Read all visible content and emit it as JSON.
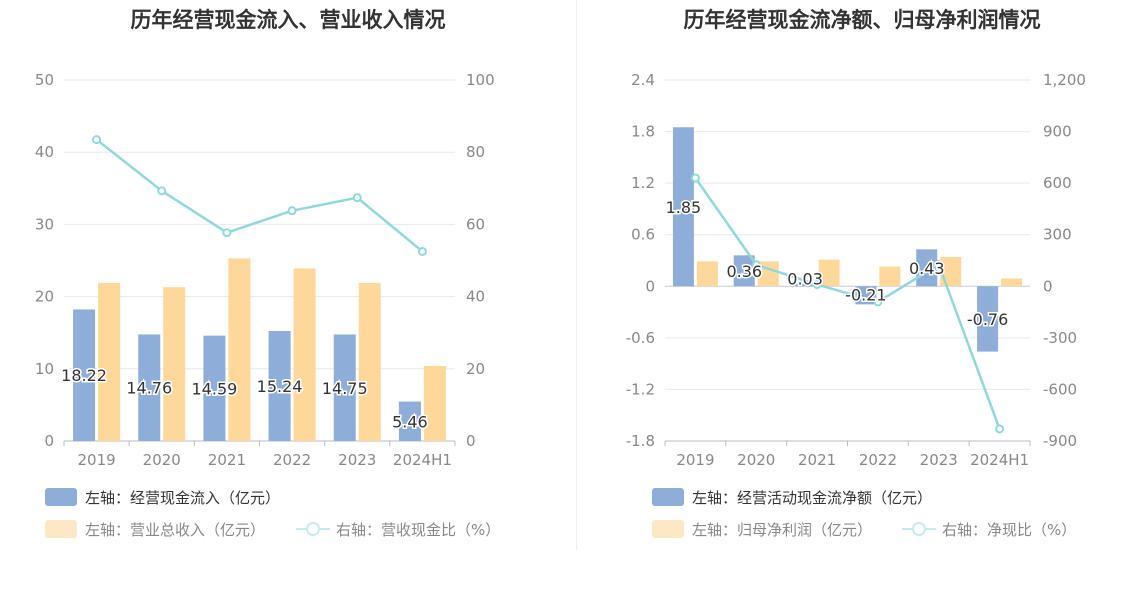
{
  "colors": {
    "bar1": "#8eadd8",
    "bar2": "#fdd89a",
    "line": "#8fd8dc",
    "axis_text": "#888888",
    "grid": "#e6e9f0",
    "title": "#333333",
    "label": "#333333"
  },
  "left": {
    "title": "历年经营现金流入、营业收入情况",
    "legend": {
      "bar1": "左轴：经营现金流入（亿元）",
      "bar2": "左轴：营业总收入（亿元）",
      "line": "右轴：营收现金比（%）"
    }
  },
  "right": {
    "title": "历年经营现金流净额、归母净利润情况",
    "legend": {
      "bar1": "左轴：经营活动现金流净额（亿元）",
      "bar2": "左轴：归母净利润（亿元）",
      "line": "右轴：净现比（%）"
    }
  },
  "chart_data": [
    {
      "type": "bar",
      "title": "历年经营现金流入、营业收入情况",
      "categories": [
        "2019",
        "2020",
        "2021",
        "2022",
        "2023",
        "2024H1"
      ],
      "y_left": {
        "min": 0,
        "max": 50,
        "ticks": [
          "0",
          "10",
          "20",
          "30",
          "40",
          "50"
        ]
      },
      "y_right": {
        "min": 0,
        "max": 100,
        "ticks": [
          "0",
          "20",
          "40",
          "60",
          "80",
          "100"
        ]
      },
      "series": [
        {
          "name": "左轴：经营现金流入（亿元）",
          "axis": "left",
          "kind": "bar",
          "values": [
            18.22,
            14.76,
            14.59,
            15.24,
            14.75,
            5.46
          ],
          "labels": [
            "18.22",
            "14.76",
            "14.59",
            "15.24",
            "14.75",
            "5.46"
          ]
        },
        {
          "name": "左轴：营业总收入（亿元）",
          "axis": "left",
          "kind": "bar",
          "values": [
            21.9,
            21.3,
            25.3,
            23.9,
            21.9,
            10.4
          ]
        },
        {
          "name": "右轴：营收现金比（%）",
          "axis": "right",
          "kind": "line",
          "values": [
            83.5,
            69.3,
            57.7,
            63.8,
            67.4,
            52.5
          ]
        }
      ],
      "legend_position": "bottom-left",
      "grid": true
    },
    {
      "type": "bar",
      "title": "历年经营现金流净额、归母净利润情况",
      "categories": [
        "2019",
        "2020",
        "2021",
        "2022",
        "2023",
        "2024H1"
      ],
      "y_left": {
        "min": -1.8,
        "max": 2.4,
        "ticks": [
          "-1.8",
          "-1.2",
          "-0.6",
          "0",
          "0.6",
          "1.2",
          "1.8",
          "2.4"
        ]
      },
      "y_right": {
        "min": -900,
        "max": 1200,
        "ticks": [
          "-900",
          "-600",
          "-300",
          "0",
          "300",
          "600",
          "900",
          "1,200"
        ]
      },
      "series": [
        {
          "name": "左轴：经营活动现金流净额（亿元）",
          "axis": "left",
          "kind": "bar",
          "values": [
            1.85,
            0.36,
            0.03,
            -0.21,
            0.43,
            -0.76
          ],
          "labels": [
            "1.85",
            "0.36",
            "0.03",
            "-0.21",
            "0.43",
            "-0.76"
          ]
        },
        {
          "name": "左轴：归母净利润（亿元）",
          "axis": "left",
          "kind": "bar",
          "values": [
            0.29,
            0.29,
            0.31,
            0.23,
            0.34,
            0.09
          ]
        },
        {
          "name": "右轴：净现比（%）",
          "axis": "right",
          "kind": "line",
          "values": [
            630,
            125,
            10,
            -91,
            126,
            -830
          ]
        }
      ],
      "legend_position": "bottom-left",
      "grid": true
    }
  ]
}
